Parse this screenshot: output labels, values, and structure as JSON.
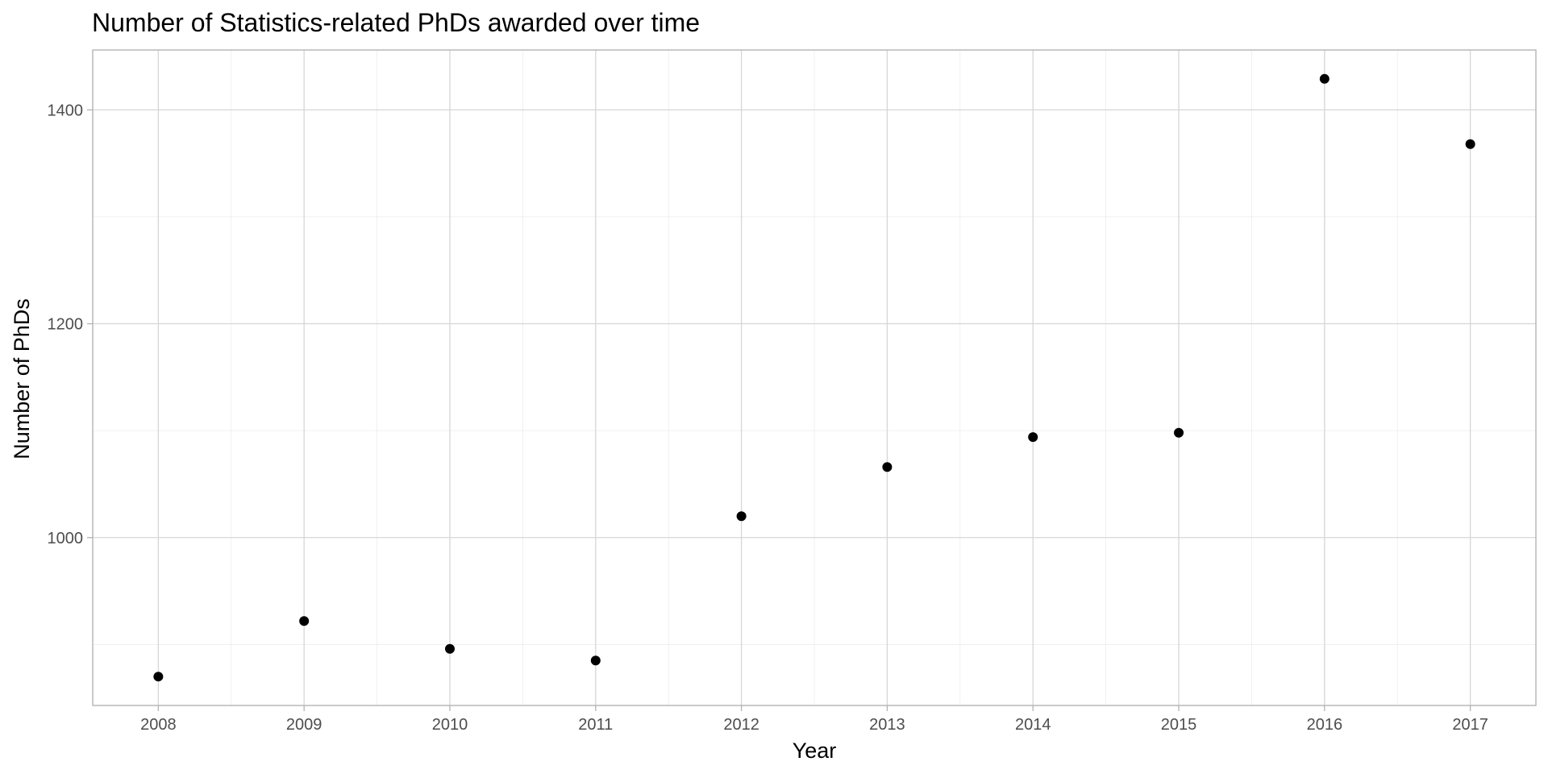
{
  "chart_data": {
    "type": "scatter",
    "title": "Number of Statistics-related PhDs awarded over time",
    "xlabel": "Year",
    "ylabel": "Number of PhDs",
    "x": [
      2008,
      2009,
      2010,
      2011,
      2012,
      2013,
      2014,
      2015,
      2016,
      2017
    ],
    "series": [
      {
        "values": [
          870,
          922,
          896,
          885,
          1020,
          1066,
          1094,
          1098,
          1429,
          1368
        ],
        "color": "#000000"
      }
    ],
    "xticks": [
      "2008",
      "2009",
      "2010",
      "2011",
      "2012",
      "2013",
      "2014",
      "2015",
      "2016",
      "2017"
    ],
    "yticks": [
      "1000",
      "1200",
      "1400"
    ],
    "ytick_values": [
      1000,
      1200,
      1400
    ],
    "xlim": [
      2007.55,
      2017.45
    ],
    "ylim": [
      843,
      1456
    ],
    "grid": true,
    "legend": "none"
  }
}
